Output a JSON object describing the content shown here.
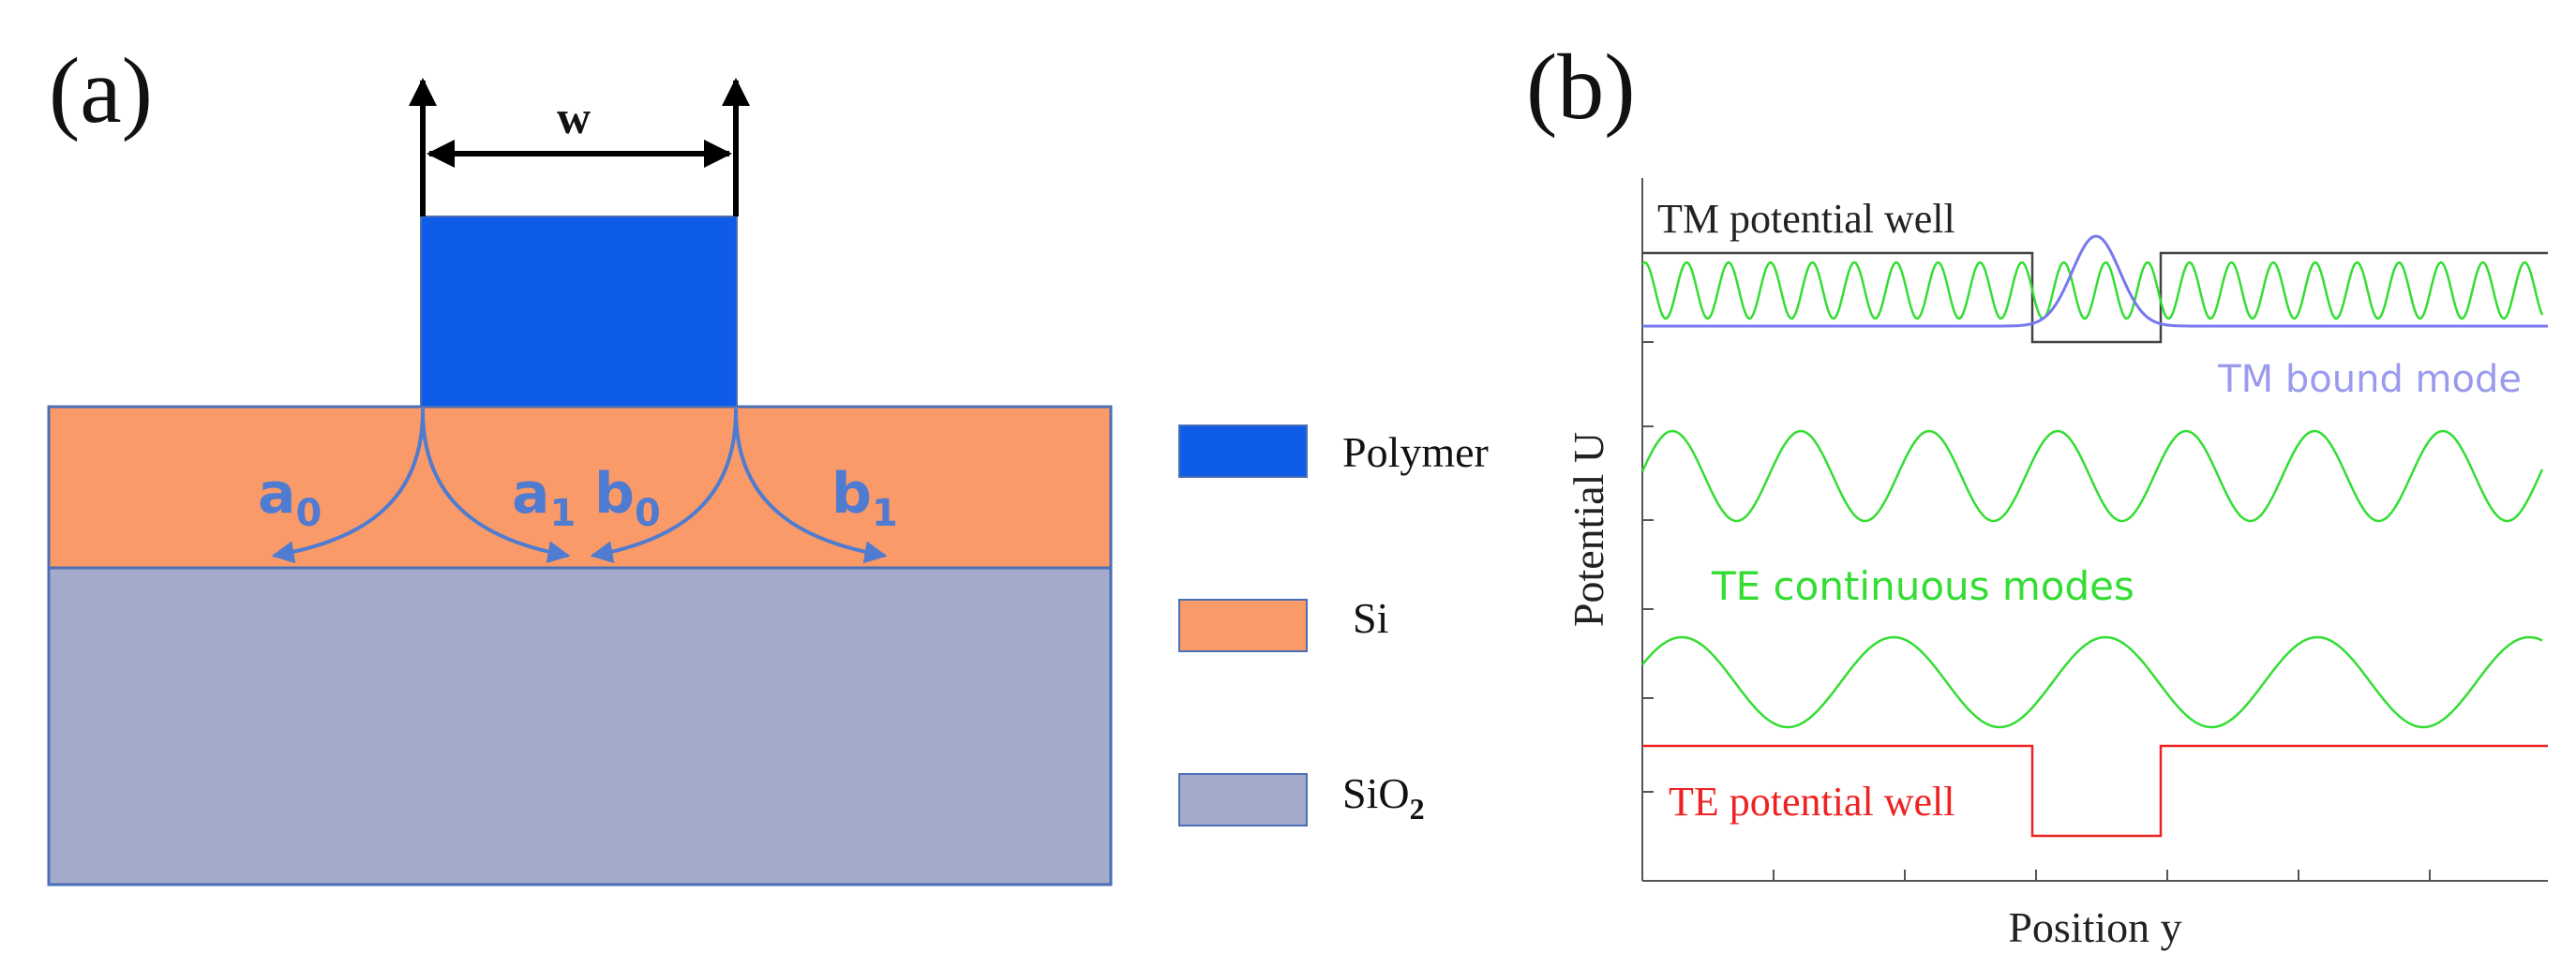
{
  "panel_a": {
    "label": "(a)",
    "width_label": "w",
    "coefficients": [
      {
        "base": "a",
        "sub": "0"
      },
      {
        "base": "a",
        "sub": "1"
      },
      {
        "base": "b",
        "sub": "0"
      },
      {
        "base": "b",
        "sub": "1"
      }
    ],
    "legend": [
      {
        "label": "Polymer",
        "sub": "",
        "color": "#0f5ce8"
      },
      {
        "label": "Si",
        "sub": "",
        "color": "#fa9a68"
      },
      {
        "label": "SiO",
        "sub": "2",
        "color": "#a4aaca"
      }
    ],
    "colors": {
      "polymer": "#0f5ce8",
      "si": "#fa9a68",
      "sio2": "#a4aaca",
      "outline": "#4a6fb5",
      "arrow": "#4f7bd0"
    }
  },
  "panel_b": {
    "label": "(b)",
    "ylabel": "Potential U",
    "xlabel": "Position y",
    "tm_well_label": "TM potential well",
    "tm_mode_label": "TM bound mode",
    "te_modes_label": "TE continuous modes",
    "te_well_label": "TE potential well",
    "colors": {
      "axis": "#555555",
      "tm_well": "#444444",
      "te_wave": "#33dd33",
      "tm_mode": "#7777ee",
      "tm_mode_label": "#9a9aee",
      "te_well": "#ee2222"
    }
  }
}
